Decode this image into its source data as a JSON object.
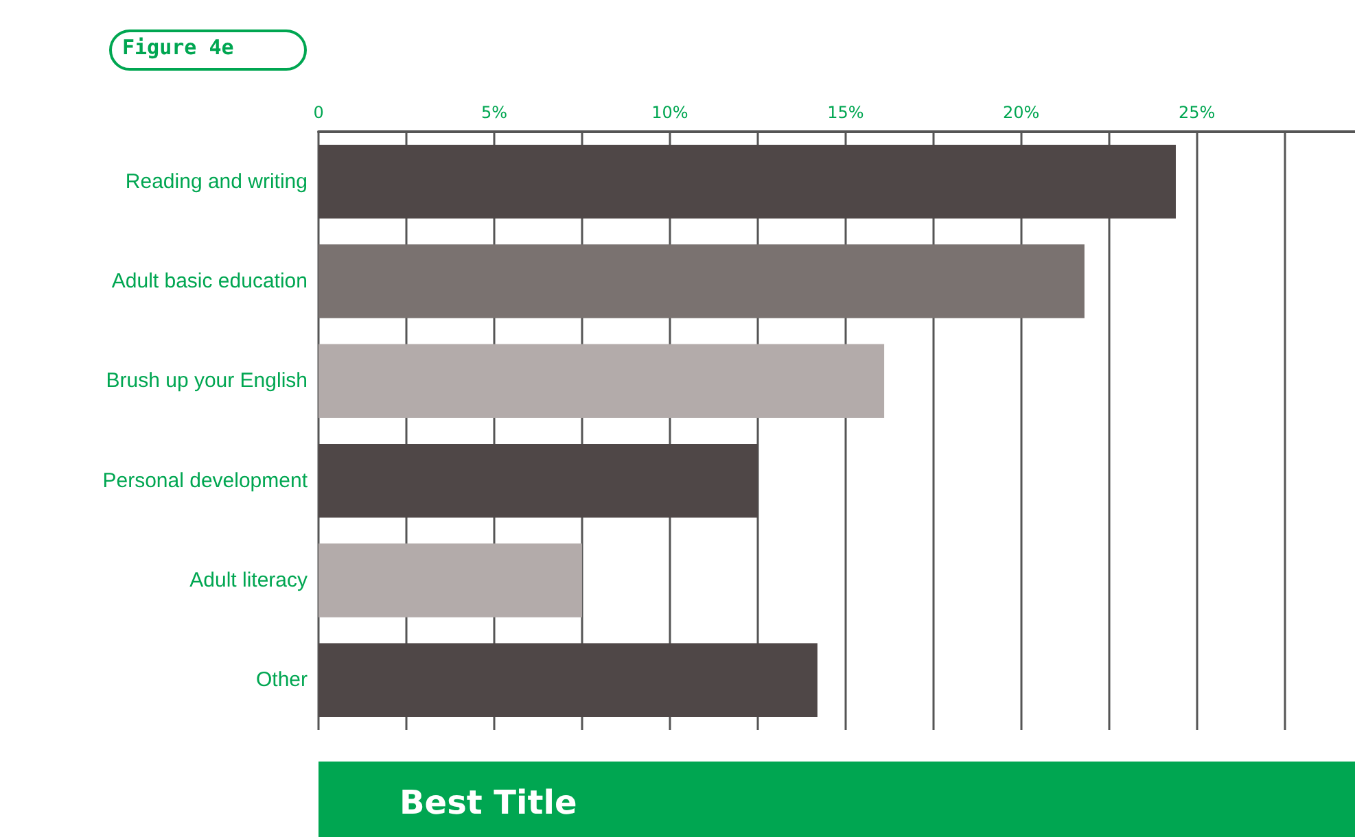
{
  "chart_data": {
    "type": "bar",
    "orientation": "horizontal",
    "title": "Figure 4e",
    "subtitle": "Best Title",
    "categories": [
      "Reading and writing",
      "Adult basic education",
      "Brush up your English",
      "Personal development",
      "Adult literacy",
      "Other"
    ],
    "values": [
      24.4,
      21.8,
      16.1,
      12.5,
      7.5,
      14.2
    ],
    "colors": [
      "#4f4747",
      "#7a7270",
      "#b3abaa",
      "#4f4747",
      "#b3abaa",
      "#4f4747"
    ],
    "xlim": [
      0,
      29.5
    ],
    "xticks": [
      0,
      {
        "value": 2.5,
        "label": null
      },
      {
        "value": 5,
        "label": "5%"
      },
      {
        "value": 7.5,
        "label": null
      },
      {
        "value": 10,
        "label": "10%"
      },
      {
        "value": 12.5,
        "label": null
      },
      {
        "value": 15,
        "label": "15%"
      },
      {
        "value": 17.5,
        "label": null
      },
      {
        "value": 20,
        "label": "20%"
      },
      {
        "value": 22.5,
        "label": null
      },
      {
        "value": 25,
        "label": "25%"
      },
      {
        "value": 27.5,
        "label": null
      }
    ],
    "grid": "x"
  }
}
